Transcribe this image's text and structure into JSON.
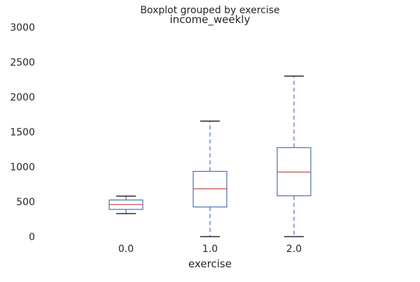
{
  "chart_data": {
    "type": "boxplot",
    "suptitle": "Boxplot grouped by exercise",
    "title": "income_weekly",
    "xlabel": "exercise",
    "ylabel": "",
    "ylim": [
      0,
      3000
    ],
    "yticks": [
      0,
      500,
      1000,
      1500,
      2000,
      2500,
      3000
    ],
    "grid": false,
    "categories": [
      "0.0",
      "1.0",
      "2.0"
    ],
    "boxes": [
      {
        "category": "0.0",
        "whisker_low": 330,
        "q1": 390,
        "median": 460,
        "q3": 525,
        "whisker_high": 580
      },
      {
        "category": "1.0",
        "whisker_low": 0,
        "q1": 425,
        "median": 685,
        "q3": 935,
        "whisker_high": 1655
      },
      {
        "category": "2.0",
        "whisker_low": 0,
        "q1": 585,
        "median": 925,
        "q3": 1275,
        "whisker_high": 2300
      }
    ],
    "colors": {
      "box": "#4c72b0",
      "whisker": "#4c72b0",
      "median": "#c44e52",
      "cap": "#000000"
    }
  }
}
